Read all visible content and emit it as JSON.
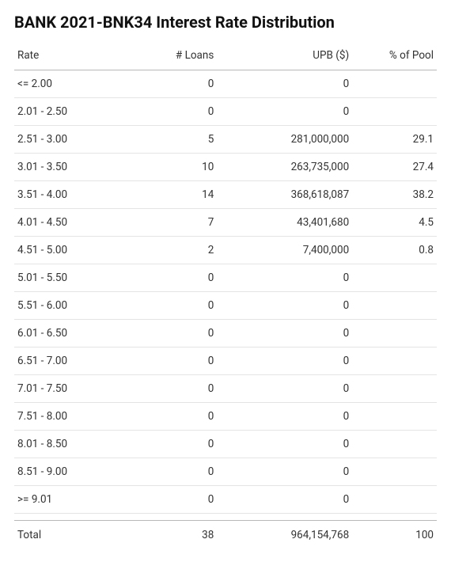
{
  "title": "BANK 2021-BNK34 Interest Rate Distribution",
  "table": {
    "type": "table",
    "background_color": "#ffffff",
    "text_color": "#333333",
    "header_border_color": "#b8b8b8",
    "row_border_color": "#e4e4e4",
    "title_fontsize": 20,
    "body_fontsize": 13.5,
    "columns": [
      {
        "key": "rate",
        "label": "Rate",
        "align": "left",
        "width_pct": 28
      },
      {
        "key": "loans",
        "label": "# Loans",
        "align": "right",
        "width_pct": 20
      },
      {
        "key": "upb",
        "label": "UPB ($)",
        "align": "right",
        "width_pct": 32
      },
      {
        "key": "pct",
        "label": "% of Pool",
        "align": "right",
        "width_pct": 20
      }
    ],
    "rows": [
      {
        "rate": "<= 2.00",
        "loans": "0",
        "upb": "0",
        "pct": ""
      },
      {
        "rate": "2.01 - 2.50",
        "loans": "0",
        "upb": "0",
        "pct": ""
      },
      {
        "rate": "2.51 - 3.00",
        "loans": "5",
        "upb": "281,000,000",
        "pct": "29.1"
      },
      {
        "rate": "3.01 - 3.50",
        "loans": "10",
        "upb": "263,735,000",
        "pct": "27.4"
      },
      {
        "rate": "3.51 - 4.00",
        "loans": "14",
        "upb": "368,618,087",
        "pct": "38.2"
      },
      {
        "rate": "4.01 - 4.50",
        "loans": "7",
        "upb": "43,401,680",
        "pct": "4.5"
      },
      {
        "rate": "4.51 - 5.00",
        "loans": "2",
        "upb": "7,400,000",
        "pct": "0.8"
      },
      {
        "rate": "5.01 - 5.50",
        "loans": "0",
        "upb": "0",
        "pct": ""
      },
      {
        "rate": "5.51 - 6.00",
        "loans": "0",
        "upb": "0",
        "pct": ""
      },
      {
        "rate": "6.01 - 6.50",
        "loans": "0",
        "upb": "0",
        "pct": ""
      },
      {
        "rate": "6.51 - 7.00",
        "loans": "0",
        "upb": "0",
        "pct": ""
      },
      {
        "rate": "7.01 - 7.50",
        "loans": "0",
        "upb": "0",
        "pct": ""
      },
      {
        "rate": "7.51 - 8.00",
        "loans": "0",
        "upb": "0",
        "pct": ""
      },
      {
        "rate": "8.01 - 8.50",
        "loans": "0",
        "upb": "0",
        "pct": ""
      },
      {
        "rate": "8.51 - 9.00",
        "loans": "0",
        "upb": "0",
        "pct": ""
      },
      {
        "rate": ">= 9.01",
        "loans": "0",
        "upb": "0",
        "pct": ""
      }
    ],
    "total": {
      "rate": "Total",
      "loans": "38",
      "upb": "964,154,768",
      "pct": "100"
    }
  }
}
